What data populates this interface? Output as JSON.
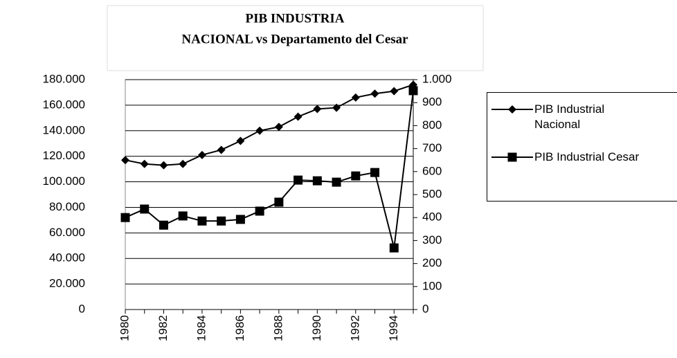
{
  "chart_data": {
    "type": "line",
    "title": "PIB INDUSTRIA",
    "subtitle": "NACIONAL vs Departamento del Cesar",
    "categories": [
      "1980",
      null,
      "1982",
      null,
      "1984",
      null,
      "1986",
      null,
      "1988",
      null,
      "1990",
      null,
      "1992",
      null,
      "1994",
      null
    ],
    "series": [
      {
        "name": "PIB Industrial Nacional",
        "color": "#000000",
        "marker": "diamond",
        "values": [
          117000,
          114000,
          113000,
          114000,
          121000,
          125000,
          132000,
          140000,
          143000,
          151000,
          157000,
          158000,
          166000,
          169000,
          171000,
          176000
        ]
      },
      {
        "name": "PIB Industrial Cesar",
        "color": "#000000",
        "marker": "square",
        "axis": "y2",
        "values": [
          400,
          437,
          367,
          407,
          385,
          385,
          392,
          428,
          467,
          563,
          560,
          554,
          581,
          596,
          268,
          952
        ]
      }
    ],
    "ylim": [
      0,
      180000
    ],
    "yticks": [
      0,
      {
        "value": 20000,
        "label": "20.000"
      },
      {
        "value": 40000,
        "label": "40.000"
      },
      {
        "value": 60000,
        "label": "60.000"
      },
      {
        "value": 80000,
        "label": "80.000"
      },
      {
        "value": 100000,
        "label": "100.000"
      },
      {
        "value": 120000,
        "label": "120.000"
      },
      {
        "value": 140000,
        "label": "140.000"
      },
      {
        "value": 160000,
        "label": "160.000"
      },
      {
        "value": 180000,
        "label": "180.000"
      }
    ],
    "y2lim": [
      0,
      1000
    ],
    "y2ticks": [
      0,
      100,
      200,
      300,
      400,
      500,
      600,
      700,
      800,
      900,
      {
        "value": 1000,
        "label": "1.000"
      }
    ],
    "grid": true,
    "legend": "right"
  }
}
